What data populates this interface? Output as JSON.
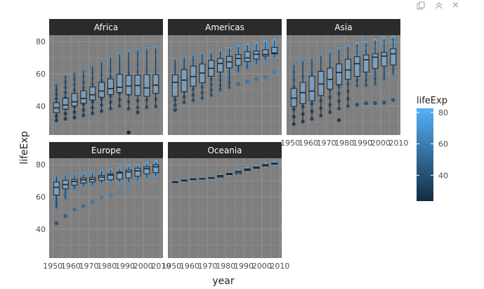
{
  "toolbar": {
    "copy_icon": "copy-icon",
    "collapse_icon": "chevron-up-double-icon",
    "close_icon": "close-icon",
    "collapse_glyph": "≈",
    "close_glyph": "×"
  },
  "colors": {
    "panel_bg": "#7f7f7f",
    "grid": "#919191",
    "strip_bg": "#2b2b2b",
    "low": "#132B43",
    "high": "#56B1F7"
  },
  "chart_data": {
    "type": "box",
    "facet_by": "continent",
    "x_var": "year",
    "y_var": "lifeExp",
    "xlabel": "year",
    "ylabel": "lifeExp",
    "x_ticks": [
      1950,
      1960,
      1970,
      1980,
      1990,
      2000,
      2010
    ],
    "x_tick_labels": [
      "1950",
      "1960",
      "1970",
      "1980",
      "1990",
      "2000",
      "2010"
    ],
    "y_ticks": [
      40,
      60,
      80
    ],
    "y_tick_labels": [
      "40",
      "60",
      "80"
    ],
    "xlim": [
      1948,
      2011
    ],
    "ylim": [
      22,
      84
    ],
    "legend": {
      "title": "lifeExp",
      "position": "right",
      "ticks": [
        40,
        60,
        80
      ],
      "tick_labels": [
        "40",
        "60",
        "80"
      ],
      "range": [
        23.6,
        82.6
      ]
    },
    "years": [
      1952,
      1957,
      1962,
      1967,
      1972,
      1977,
      1982,
      1987,
      1992,
      1997,
      2002,
      2007
    ],
    "facets": [
      {
        "name": "Africa",
        "boxes": [
          {
            "min": 31,
            "q1": 35.8,
            "med": 38.8,
            "q3": 42.1,
            "max": 52.7,
            "out": []
          },
          {
            "min": 32,
            "q1": 38,
            "med": 40.6,
            "q3": 44.8,
            "max": 58.1,
            "out": []
          },
          {
            "min": 32.8,
            "q1": 40,
            "med": 42.6,
            "q3": 47.8,
            "max": 60.2,
            "out": []
          },
          {
            "min": 34.1,
            "q1": 41.7,
            "med": 44.7,
            "q3": 49.5,
            "max": 61.6,
            "out": []
          },
          {
            "min": 35.4,
            "q1": 43.8,
            "med": 47,
            "q3": 51.8,
            "max": 64.3,
            "out": []
          },
          {
            "min": 36.8,
            "q1": 45.5,
            "med": 49.3,
            "q3": 54.7,
            "max": 67,
            "out": []
          },
          {
            "min": 38.4,
            "q1": 47.1,
            "med": 50.8,
            "q3": 56.8,
            "max": 69.9,
            "out": []
          },
          {
            "min": 39.9,
            "q1": 48.4,
            "med": 51.6,
            "q3": 59.7,
            "max": 71.9,
            "out": []
          },
          {
            "min": 38.3,
            "q1": 47,
            "med": 52.4,
            "q3": 59,
            "max": 73.6,
            "out": [
              23.6
            ]
          },
          {
            "min": 39,
            "q1": 46.5,
            "med": 52.8,
            "q3": 59.2,
            "max": 74.8,
            "out": [
              36.1
            ]
          },
          {
            "min": 39.2,
            "q1": 46,
            "med": 51.2,
            "q3": 59.5,
            "max": 75.7,
            "out": []
          },
          {
            "min": 39.6,
            "q1": 47.8,
            "med": 52.9,
            "q3": 59.5,
            "max": 76.4,
            "out": []
          }
        ]
      },
      {
        "name": "Americas",
        "boxes": [
          {
            "min": 40.4,
            "q1": 46,
            "med": 54.7,
            "q3": 59.4,
            "max": 68.8,
            "out": [
              37.6
            ]
          },
          {
            "min": 42.2,
            "q1": 48.9,
            "med": 56.1,
            "q3": 62.6,
            "max": 70,
            "out": []
          },
          {
            "min": 43.4,
            "q1": 52.3,
            "med": 58.3,
            "q3": 64.8,
            "max": 71.3,
            "out": []
          },
          {
            "min": 44.9,
            "q1": 54.4,
            "med": 60.5,
            "q3": 66.1,
            "max": 72.1,
            "out": []
          },
          {
            "min": 46.7,
            "q1": 58.5,
            "med": 63.4,
            "q3": 68.3,
            "max": 72.9,
            "out": []
          },
          {
            "min": 50,
            "q1": 61.1,
            "med": 66.4,
            "q3": 69.5,
            "max": 74.2,
            "out": []
          },
          {
            "min": 51.5,
            "q1": 63.7,
            "med": 67.4,
            "q3": 70.8,
            "max": 75.8,
            "out": []
          },
          {
            "min": 61.4,
            "q1": 65.2,
            "med": 69.5,
            "q3": 71.9,
            "max": 76.9,
            "out": [
              53.6
            ]
          },
          {
            "min": 63.4,
            "q1": 67.6,
            "med": 69.9,
            "q3": 73.7,
            "max": 77.9,
            "out": [
              55.1
            ]
          },
          {
            "min": 66.2,
            "q1": 69.2,
            "med": 72.1,
            "q3": 74.1,
            "max": 78.6,
            "out": [
              56.7
            ]
          },
          {
            "min": 68.6,
            "q1": 71,
            "med": 72,
            "q3": 74.9,
            "max": 79.8,
            "out": [
              58.1
            ]
          },
          {
            "min": 70.3,
            "q1": 72.4,
            "med": 72.9,
            "q3": 76.4,
            "max": 80.7,
            "out": [
              60.9
            ]
          }
        ]
      },
      {
        "name": "Asia",
        "boxes": [
          {
            "min": 28.8,
            "q1": 39.8,
            "med": 44.9,
            "q3": 50.9,
            "max": 65.4,
            "out": []
          },
          {
            "min": 30.3,
            "q1": 41.5,
            "med": 48.3,
            "q3": 54.7,
            "max": 67.8,
            "out": []
          },
          {
            "min": 32,
            "q1": 43.3,
            "med": 49.3,
            "q3": 58.5,
            "max": 69.4,
            "out": []
          },
          {
            "min": 34,
            "q1": 46.5,
            "med": 53.7,
            "q3": 61.5,
            "max": 71.4,
            "out": []
          },
          {
            "min": 36.1,
            "q1": 50.5,
            "med": 56.5,
            "q3": 63.5,
            "max": 73.4,
            "out": []
          },
          {
            "min": 38.4,
            "q1": 53.3,
            "med": 60.8,
            "q3": 66.1,
            "max": 75.4,
            "out": [
              31.2
            ]
          },
          {
            "min": 39.9,
            "q1": 56.6,
            "med": 62.4,
            "q3": 69.1,
            "max": 77.1,
            "out": []
          },
          {
            "min": 52.5,
            "q1": 58.4,
            "med": 66.3,
            "q3": 70.6,
            "max": 78.7,
            "out": [
              40.8
            ]
          },
          {
            "min": 52.7,
            "q1": 61.1,
            "med": 68.7,
            "q3": 71.7,
            "max": 79.4,
            "out": [
              41.7
            ]
          },
          {
            "min": 53.6,
            "q1": 63.3,
            "med": 70.3,
            "q3": 72.5,
            "max": 80.7,
            "out": [
              41.8
            ]
          },
          {
            "min": 56.7,
            "q1": 64.8,
            "med": 71,
            "q3": 73.2,
            "max": 82,
            "out": [
              42.1
            ]
          },
          {
            "min": 59.7,
            "q1": 65.5,
            "med": 72.4,
            "q3": 75.6,
            "max": 82.6,
            "out": [
              43.8
            ]
          }
        ]
      },
      {
        "name": "Europe",
        "boxes": [
          {
            "min": 53.8,
            "q1": 61.1,
            "med": 65.9,
            "q3": 69.2,
            "max": 72.7,
            "out": [
              43.6
            ]
          },
          {
            "min": 59.3,
            "q1": 65,
            "med": 67.6,
            "q3": 70.3,
            "max": 73.5,
            "out": [
              48.1
            ]
          },
          {
            "min": 64.8,
            "q1": 67.3,
            "med": 69.5,
            "q3": 70.8,
            "max": 73.7,
            "out": [
              52.1
            ]
          },
          {
            "min": 66.8,
            "q1": 68.6,
            "med": 70.6,
            "q3": 71.8,
            "max": 74.2,
            "out": [
              54.3
            ]
          },
          {
            "min": 67.5,
            "q1": 69.3,
            "med": 70.9,
            "q3": 72.1,
            "max": 74.7,
            "out": [
              57
            ]
          },
          {
            "min": 68.6,
            "q1": 70.2,
            "med": 72.3,
            "q3": 73.3,
            "max": 76.1,
            "out": [
              59.5
            ]
          },
          {
            "min": 69.4,
            "q1": 70.6,
            "med": 73.5,
            "q3": 74.3,
            "max": 76.9,
            "out": [
              61
            ]
          },
          {
            "min": 69.6,
            "q1": 71,
            "med": 74.8,
            "q3": 75.4,
            "max": 77.5,
            "out": [
              63.1
            ]
          },
          {
            "min": 69.3,
            "q1": 71.7,
            "med": 75.5,
            "q3": 76.7,
            "max": 78.8,
            "out": [
              66.1
            ]
          },
          {
            "min": 70.4,
            "q1": 72.8,
            "med": 76.1,
            "q3": 77.8,
            "max": 79.4,
            "out": []
          },
          {
            "min": 71.7,
            "q1": 74.3,
            "med": 77.5,
            "q3": 78.6,
            "max": 80.6,
            "out": []
          },
          {
            "min": 72.8,
            "q1": 75,
            "med": 78.6,
            "q3": 79.9,
            "max": 81.8,
            "out": []
          }
        ]
      },
      {
        "name": "Oceania",
        "boxes": [
          {
            "min": 69.1,
            "q1": 69.1,
            "med": 69.3,
            "q3": 69.3,
            "max": 69.4,
            "out": []
          },
          {
            "min": 70.3,
            "q1": 70.3,
            "med": 70.3,
            "q3": 70.3,
            "max": 70.3,
            "out": []
          },
          {
            "min": 71,
            "q1": 71,
            "med": 71.1,
            "q3": 71.1,
            "max": 71.2,
            "out": []
          },
          {
            "min": 71.1,
            "q1": 71.1,
            "med": 71.3,
            "q3": 71.4,
            "max": 71.5,
            "out": []
          },
          {
            "min": 71.9,
            "q1": 71.9,
            "med": 71.9,
            "q3": 71.9,
            "max": 71.9,
            "out": []
          },
          {
            "min": 72.2,
            "q1": 72.2,
            "med": 72.9,
            "q3": 73.3,
            "max": 73.5,
            "out": []
          },
          {
            "min": 73.8,
            "q1": 73.8,
            "med": 74.3,
            "q3": 74.6,
            "max": 74.7,
            "out": []
          },
          {
            "min": 74.3,
            "q1": 74.3,
            "med": 75.3,
            "q3": 76,
            "max": 76.3,
            "out": []
          },
          {
            "min": 76.3,
            "q1": 76.3,
            "med": 76.9,
            "q3": 77.4,
            "max": 77.6,
            "out": []
          },
          {
            "min": 77.6,
            "q1": 77.6,
            "med": 78.2,
            "q3": 78.6,
            "max": 78.8,
            "out": []
          },
          {
            "min": 79.1,
            "q1": 79.1,
            "med": 79.7,
            "q3": 80.1,
            "max": 80.4,
            "out": []
          },
          {
            "min": 80.2,
            "q1": 80.2,
            "med": 80.7,
            "q3": 81,
            "max": 81.2,
            "out": []
          }
        ]
      }
    ]
  }
}
